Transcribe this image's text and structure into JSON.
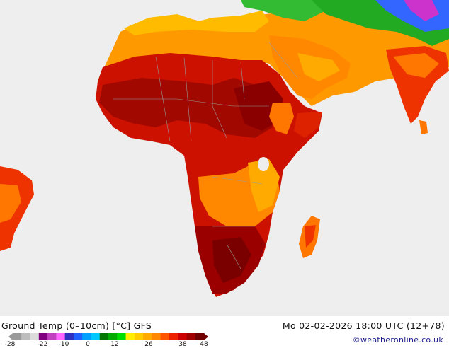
{
  "title": "Ground Temp (0–10cm) [°C] GFS",
  "datetime": "Mo 02-02-2026 18:00 UTC (12+78)",
  "credit": "©weatheronline.co.uk",
  "scale": {
    "ticks": [
      "-28",
      "-22",
      "-10",
      "0",
      "12",
      "26",
      "38",
      "48"
    ],
    "colors": [
      "#9a9a9a",
      "#bdbdbd",
      "#dcdcdc",
      "#800080",
      "#c040c0",
      "#ff66ff",
      "#3030c0",
      "#2060ff",
      "#00a0ff",
      "#00c8ff",
      "#007700",
      "#00aa00",
      "#00dd00",
      "#ffee00",
      "#ffcc00",
      "#ffaa00",
      "#ff8800",
      "#ff5500",
      "#ee2200",
      "#cc0000",
      "#a00000",
      "#700000"
    ]
  },
  "map": {
    "regions": [
      "Africa",
      "Arabian Peninsula",
      "India",
      "Madagascar",
      "South America"
    ],
    "colors": {
      "ocean": "#eeeeee",
      "hot": "#c80000",
      "very_hot": "#8a0000",
      "warm": "#ff8800",
      "mild": "#ffaa00",
      "cool_green": "#00bb00",
      "cold_blue": "#3060ff"
    }
  }
}
